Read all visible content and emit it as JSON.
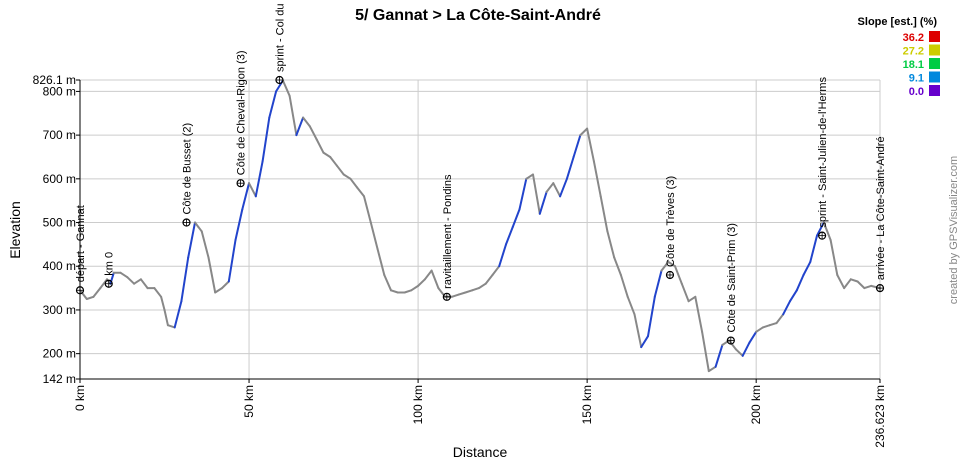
{
  "chart_data": {
    "type": "line",
    "title": "5/ Gannat > La Côte-Saint-André",
    "xlabel": "Distance",
    "ylabel": "Elevation",
    "xlim": [
      0,
      236.623
    ],
    "ylim": [
      142,
      826.1
    ],
    "x_ticks": [
      {
        "value": 0,
        "label": "0 km"
      },
      {
        "value": 50,
        "label": "50 km"
      },
      {
        "value": 100,
        "label": "100 km"
      },
      {
        "value": 150,
        "label": "150 km"
      },
      {
        "value": 200,
        "label": "200 km"
      },
      {
        "value": 236.623,
        "label": "236.623 km"
      }
    ],
    "y_ticks": [
      {
        "value": 142,
        "label": "142 m"
      },
      {
        "value": 200,
        "label": "200 m"
      },
      {
        "value": 300,
        "label": "300 m"
      },
      {
        "value": 400,
        "label": "400 m"
      },
      {
        "value": 500,
        "label": "500 m"
      },
      {
        "value": 600,
        "label": "600 m"
      },
      {
        "value": 700,
        "label": "700 m"
      },
      {
        "value": 800,
        "label": "800 m"
      },
      {
        "value": 826.1,
        "label": "826.1 m"
      }
    ],
    "grid": true,
    "profile": {
      "x": [
        0,
        2,
        4,
        6,
        8,
        9,
        10,
        12,
        14,
        16,
        18,
        20,
        22,
        24,
        25,
        26,
        28,
        30,
        32,
        34,
        35,
        36,
        38,
        40,
        42,
        44,
        46,
        48,
        50,
        52,
        54,
        56,
        58,
        60,
        62,
        64,
        66,
        68,
        70,
        72,
        74,
        76,
        78,
        80,
        82,
        84,
        86,
        88,
        90,
        92,
        94,
        96,
        98,
        100,
        102,
        104,
        106,
        108,
        110,
        112,
        114,
        116,
        118,
        120,
        122,
        124,
        126,
        128,
        130,
        132,
        134,
        136,
        138,
        140,
        142,
        144,
        146,
        148,
        150,
        152,
        154,
        156,
        158,
        160,
        162,
        164,
        166,
        168,
        170,
        172,
        174,
        176,
        178,
        180,
        182,
        184,
        186,
        188,
        190,
        192,
        194,
        196,
        198,
        200,
        202,
        204,
        206,
        208,
        210,
        212,
        214,
        216,
        218,
        220,
        222,
        224,
        226,
        228,
        230,
        232,
        234,
        236.623
      ],
      "y": [
        345,
        325,
        330,
        350,
        370,
        360,
        385,
        385,
        375,
        360,
        370,
        350,
        350,
        330,
        300,
        265,
        260,
        320,
        420,
        500,
        490,
        480,
        420,
        340,
        350,
        365,
        460,
        530,
        590,
        560,
        640,
        740,
        800,
        825,
        790,
        700,
        740,
        720,
        690,
        660,
        650,
        630,
        610,
        600,
        580,
        560,
        500,
        440,
        380,
        345,
        340,
        340,
        345,
        355,
        370,
        390,
        350,
        330,
        330,
        335,
        340,
        345,
        350,
        360,
        380,
        400,
        450,
        490,
        530,
        600,
        610,
        520,
        570,
        590,
        560,
        600,
        650,
        700,
        715,
        640,
        560,
        480,
        420,
        380,
        330,
        290,
        215,
        240,
        330,
        390,
        410,
        400,
        360,
        320,
        330,
        250,
        160,
        170,
        220,
        230,
        210,
        195,
        225,
        250,
        260,
        265,
        270,
        290,
        320,
        345,
        380,
        410,
        470,
        500,
        460,
        380,
        350,
        370,
        365,
        350,
        355,
        350
      ]
    },
    "waypoints": [
      {
        "x": 0,
        "y": 345,
        "label": "départ - Gannat"
      },
      {
        "x": 8.5,
        "y": 360,
        "label": "km 0"
      },
      {
        "x": 31.5,
        "y": 500,
        "label": "Côte de Busset (2)"
      },
      {
        "x": 47.5,
        "y": 590,
        "label": "Côte de Cheval-Rigon (3)"
      },
      {
        "x": 59,
        "y": 826.1,
        "label": "sprint - Col du"
      },
      {
        "x": 108.5,
        "y": 330,
        "label": "ravitaillement - Pondins"
      },
      {
        "x": 174.5,
        "y": 380,
        "label": "Côte de Trèves (3)"
      },
      {
        "x": 192.5,
        "y": 230,
        "label": "Côte de Saint-Prim (3)"
      },
      {
        "x": 219.5,
        "y": 470,
        "label": "sprint - Saint-Julien-de-l'Herms"
      },
      {
        "x": 236.623,
        "y": 350,
        "label": "arrivée - La Côte-Saint-André"
      }
    ],
    "legend": {
      "title": "Slope [est.] (%)",
      "placement": "top-right",
      "entries": [
        {
          "label": "36.2",
          "color": "#dd0000"
        },
        {
          "label": "27.2",
          "color": "#cccc00"
        },
        {
          "label": "18.1",
          "color": "#00cc44"
        },
        {
          "label": "9.1",
          "color": "#0088dd"
        },
        {
          "label": "0.0",
          "color": "#6600cc"
        }
      ]
    },
    "colors": {
      "flat": "#888888",
      "climb": "#2244cc",
      "steep": "#22aadd",
      "grid": "#cccccc"
    }
  },
  "credit": "created by GPSVisualizer.com"
}
